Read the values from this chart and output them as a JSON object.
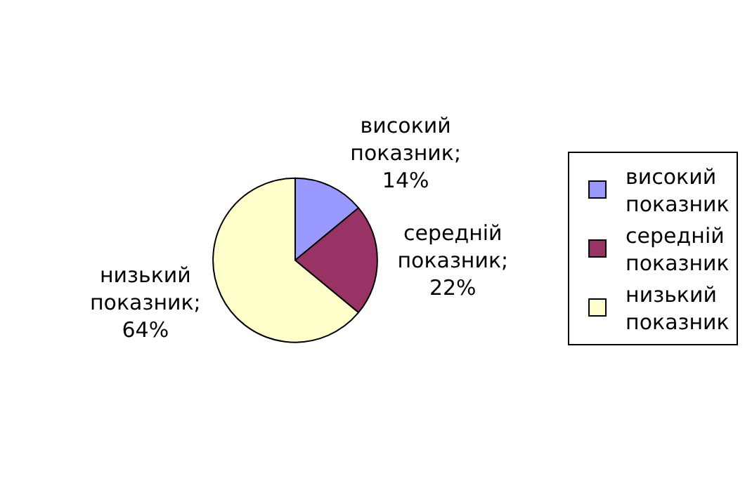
{
  "chart_data": {
    "type": "pie",
    "categories": [
      "високий показник",
      "середній показник",
      "низький показник"
    ],
    "values": [
      14,
      22,
      64
    ],
    "colors": [
      "#9999ff",
      "#993366",
      "#ffffcc"
    ],
    "value_labels": [
      "високий\nпоказник;\n14%",
      "середній\nпоказник;\n22%",
      "низький\nпоказник;\n64%"
    ],
    "legend": "right"
  }
}
